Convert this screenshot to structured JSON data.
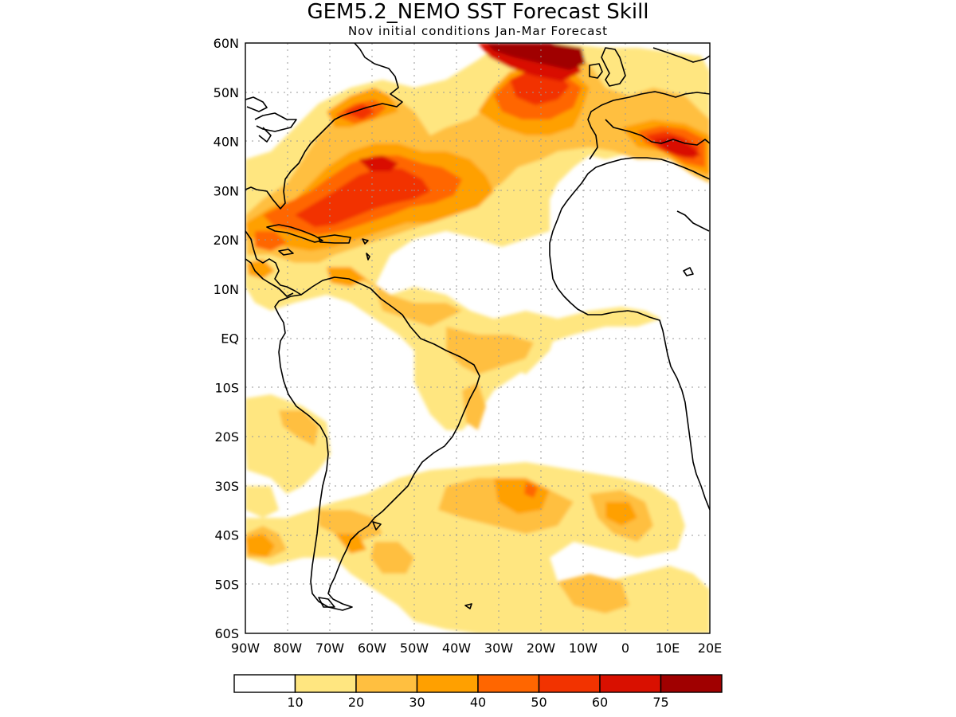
{
  "title": "GEM5.2_NEMO SST Forecast Skill",
  "subtitle": "Nov initial conditions  Jan-Mar Forecast",
  "map": {
    "lon_range": [
      -90,
      20
    ],
    "lat_range": [
      -60,
      60
    ],
    "lat_ticks": [
      {
        "value": 60,
        "label": "60N"
      },
      {
        "value": 50,
        "label": "50N"
      },
      {
        "value": 40,
        "label": "40N"
      },
      {
        "value": 30,
        "label": "30N"
      },
      {
        "value": 20,
        "label": "20N"
      },
      {
        "value": 10,
        "label": "10N"
      },
      {
        "value": 0,
        "label": "EQ"
      },
      {
        "value": -10,
        "label": "10S"
      },
      {
        "value": -20,
        "label": "20S"
      },
      {
        "value": -30,
        "label": "30S"
      },
      {
        "value": -40,
        "label": "40S"
      },
      {
        "value": -50,
        "label": "50S"
      },
      {
        "value": -60,
        "label": "60S"
      }
    ],
    "lon_ticks": [
      {
        "value": -90,
        "label": "90W"
      },
      {
        "value": -80,
        "label": "80W"
      },
      {
        "value": -70,
        "label": "70W"
      },
      {
        "value": -60,
        "label": "60W"
      },
      {
        "value": -50,
        "label": "50W"
      },
      {
        "value": -40,
        "label": "40W"
      },
      {
        "value": -30,
        "label": "30W"
      },
      {
        "value": -20,
        "label": "20W"
      },
      {
        "value": -10,
        "label": "10W"
      },
      {
        "value": 0,
        "label": "0"
      },
      {
        "value": 10,
        "label": "10E"
      },
      {
        "value": 20,
        "label": "20E"
      }
    ],
    "grid": true
  },
  "colorbar": {
    "levels": [
      {
        "color": "#ffffff",
        "label": ""
      },
      {
        "color": "#ffe680",
        "label": "10"
      },
      {
        "color": "#ffbf40",
        "label": "20"
      },
      {
        "color": "#ffa000",
        "label": "30"
      },
      {
        "color": "#ff6600",
        "label": "40"
      },
      {
        "color": "#f23300",
        "label": "50"
      },
      {
        "color": "#d91000",
        "label": "60"
      },
      {
        "color": "#a00000",
        "label": "75"
      }
    ]
  },
  "colors": {
    "c1": "#ffe680",
    "c2": "#ffbf40",
    "c3": "#ffa000",
    "c4": "#ff6600",
    "c5": "#f23300",
    "c6": "#d91000",
    "c7": "#a00000"
  }
}
